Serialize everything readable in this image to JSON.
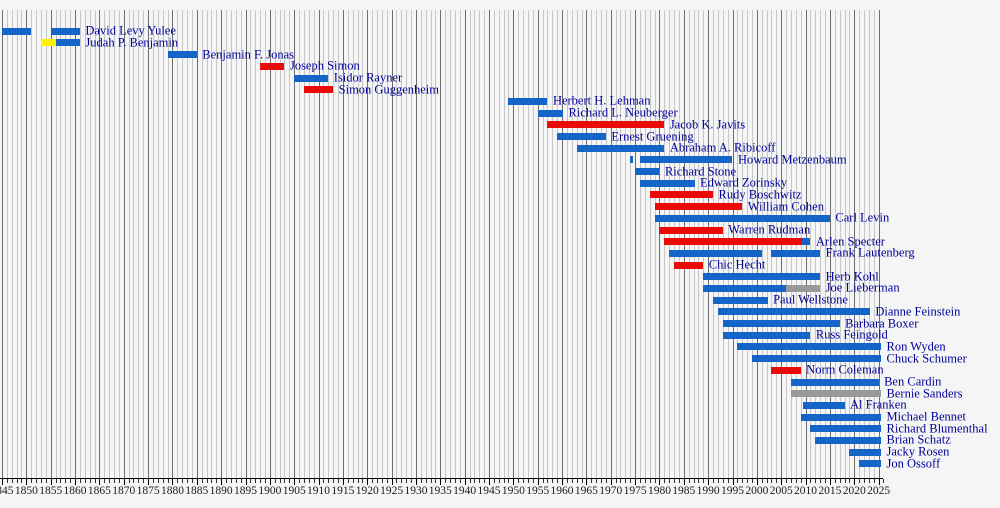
{
  "chart_data": {
    "type": "bar",
    "subtype": "gantt-timeline",
    "title": "",
    "xlabel": "",
    "ylabel": "",
    "axis": {
      "min": 1845,
      "max": 2025,
      "minor_step": 1,
      "major_step": 5,
      "tick_labels": [
        1845,
        1850,
        1855,
        1860,
        1865,
        1870,
        1875,
        1880,
        1885,
        1890,
        1895,
        1900,
        1905,
        1910,
        1915,
        1920,
        1925,
        1930,
        1935,
        1940,
        1945,
        1950,
        1955,
        1960,
        1965,
        1970,
        1975,
        1980,
        1985,
        1990,
        1995,
        2000,
        2005,
        2010,
        2015,
        2020,
        2025
      ],
      "grid": true,
      "legend": "none"
    },
    "party_colors": {
      "democratic": "#1565c8",
      "republican": "#ea0a0a",
      "whig": "#fff200",
      "independent": "#999999"
    },
    "background_color": "#f5f5f5",
    "label_color": "#000099",
    "senators": [
      {
        "name": "David Levy Yulee",
        "terms": [
          {
            "start": 1845,
            "end": 1851,
            "party": "democratic"
          },
          {
            "start": 1855,
            "end": 1861,
            "party": "democratic"
          }
        ]
      },
      {
        "name": "Judah P. Benjamin",
        "terms": [
          {
            "start": 1853,
            "end": 1856,
            "party": "whig"
          },
          {
            "start": 1856,
            "end": 1861,
            "party": "democratic"
          }
        ]
      },
      {
        "name": "Benjamin F. Jonas",
        "terms": [
          {
            "start": 1879,
            "end": 1885,
            "party": "democratic"
          }
        ]
      },
      {
        "name": "Joseph Simon",
        "terms": [
          {
            "start": 1898,
            "end": 1903,
            "party": "republican"
          }
        ]
      },
      {
        "name": "Isidor Rayner",
        "terms": [
          {
            "start": 1905,
            "end": 1912,
            "party": "democratic"
          }
        ]
      },
      {
        "name": "Simon Guggenheim",
        "terms": [
          {
            "start": 1907,
            "end": 1913,
            "party": "republican"
          }
        ]
      },
      {
        "name": "Herbert H. Lehman",
        "terms": [
          {
            "start": 1949,
            "end": 1957,
            "party": "democratic"
          }
        ]
      },
      {
        "name": "Richard L. Neuberger",
        "terms": [
          {
            "start": 1955,
            "end": 1960.2,
            "party": "democratic"
          }
        ]
      },
      {
        "name": "Jacob K. Javits",
        "terms": [
          {
            "start": 1957,
            "end": 1981,
            "party": "republican"
          }
        ]
      },
      {
        "name": "Ernest Gruening",
        "terms": [
          {
            "start": 1959,
            "end": 1969,
            "party": "democratic"
          }
        ]
      },
      {
        "name": "Abraham A. Ribicoff",
        "terms": [
          {
            "start": 1963,
            "end": 1981,
            "party": "democratic"
          }
        ]
      },
      {
        "name": "Howard Metzenbaum",
        "terms": [
          {
            "start": 1974,
            "end": 1974.5,
            "party": "democratic"
          },
          {
            "start": 1976,
            "end": 1995,
            "party": "democratic"
          }
        ]
      },
      {
        "name": "Richard Stone",
        "terms": [
          {
            "start": 1975,
            "end": 1980,
            "party": "democratic"
          }
        ]
      },
      {
        "name": "Edward Zorinsky",
        "terms": [
          {
            "start": 1976,
            "end": 1987.2,
            "party": "democratic"
          }
        ]
      },
      {
        "name": "Rudy Boschwitz",
        "terms": [
          {
            "start": 1978,
            "end": 1991,
            "party": "republican"
          }
        ]
      },
      {
        "name": "William Cohen",
        "terms": [
          {
            "start": 1979,
            "end": 1997,
            "party": "republican"
          }
        ]
      },
      {
        "name": "Carl Levin",
        "terms": [
          {
            "start": 1979,
            "end": 2015,
            "party": "democratic"
          }
        ]
      },
      {
        "name": "Warren Rudman",
        "terms": [
          {
            "start": 1980,
            "end": 1993,
            "party": "republican"
          }
        ]
      },
      {
        "name": "Arlen Specter",
        "terms": [
          {
            "start": 1981,
            "end": 2009.3,
            "party": "republican"
          },
          {
            "start": 2009.3,
            "end": 2011,
            "party": "democratic"
          }
        ]
      },
      {
        "name": "Frank Lautenberg",
        "terms": [
          {
            "start": 1982,
            "end": 2001,
            "party": "democratic"
          },
          {
            "start": 2003,
            "end": 2013,
            "party": "democratic"
          }
        ]
      },
      {
        "name": "Chic Hecht",
        "terms": [
          {
            "start": 1983,
            "end": 1989,
            "party": "republican"
          }
        ]
      },
      {
        "name": "Herb Kohl",
        "terms": [
          {
            "start": 1989,
            "end": 2013,
            "party": "democratic"
          }
        ]
      },
      {
        "name": "Joe Lieberman",
        "terms": [
          {
            "start": 1989,
            "end": 2006,
            "party": "democratic"
          },
          {
            "start": 2006,
            "end": 2013,
            "party": "independent"
          }
        ]
      },
      {
        "name": "Paul Wellstone",
        "terms": [
          {
            "start": 1991,
            "end": 2002.2,
            "party": "democratic"
          }
        ]
      },
      {
        "name": "Dianne Feinstein",
        "terms": [
          {
            "start": 1992,
            "end": 2023.2,
            "party": "democratic"
          }
        ]
      },
      {
        "name": "Barbara Boxer",
        "terms": [
          {
            "start": 1993,
            "end": 2017,
            "party": "democratic"
          }
        ]
      },
      {
        "name": "Russ Feingold",
        "terms": [
          {
            "start": 1993,
            "end": 2011,
            "party": "democratic"
          }
        ]
      },
      {
        "name": "Ron Wyden",
        "terms": [
          {
            "start": 1996,
            "end": 2025.5,
            "party": "democratic"
          }
        ]
      },
      {
        "name": "Chuck Schumer",
        "terms": [
          {
            "start": 1999,
            "end": 2025.5,
            "party": "democratic"
          }
        ]
      },
      {
        "name": "Norm Coleman",
        "terms": [
          {
            "start": 2003,
            "end": 2009,
            "party": "republican"
          }
        ]
      },
      {
        "name": "Ben Cardin",
        "terms": [
          {
            "start": 2007,
            "end": 2025,
            "party": "democratic"
          }
        ]
      },
      {
        "name": "Bernie Sanders",
        "terms": [
          {
            "start": 2007,
            "end": 2025.5,
            "party": "independent"
          }
        ]
      },
      {
        "name": "Al Franken",
        "terms": [
          {
            "start": 2009.4,
            "end": 2018,
            "party": "democratic"
          }
        ]
      },
      {
        "name": "Michael Bennet",
        "terms": [
          {
            "start": 2009,
            "end": 2025.5,
            "party": "democratic"
          }
        ]
      },
      {
        "name": "Richard Blumenthal",
        "terms": [
          {
            "start": 2011,
            "end": 2025.5,
            "party": "democratic"
          }
        ]
      },
      {
        "name": "Brian Schatz",
        "terms": [
          {
            "start": 2012,
            "end": 2025.5,
            "party": "democratic"
          }
        ]
      },
      {
        "name": "Jacky Rosen",
        "terms": [
          {
            "start": 2019,
            "end": 2025.5,
            "party": "democratic"
          }
        ]
      },
      {
        "name": "Jon Ossoff",
        "terms": [
          {
            "start": 2021,
            "end": 2025.5,
            "party": "democratic"
          }
        ]
      }
    ]
  }
}
